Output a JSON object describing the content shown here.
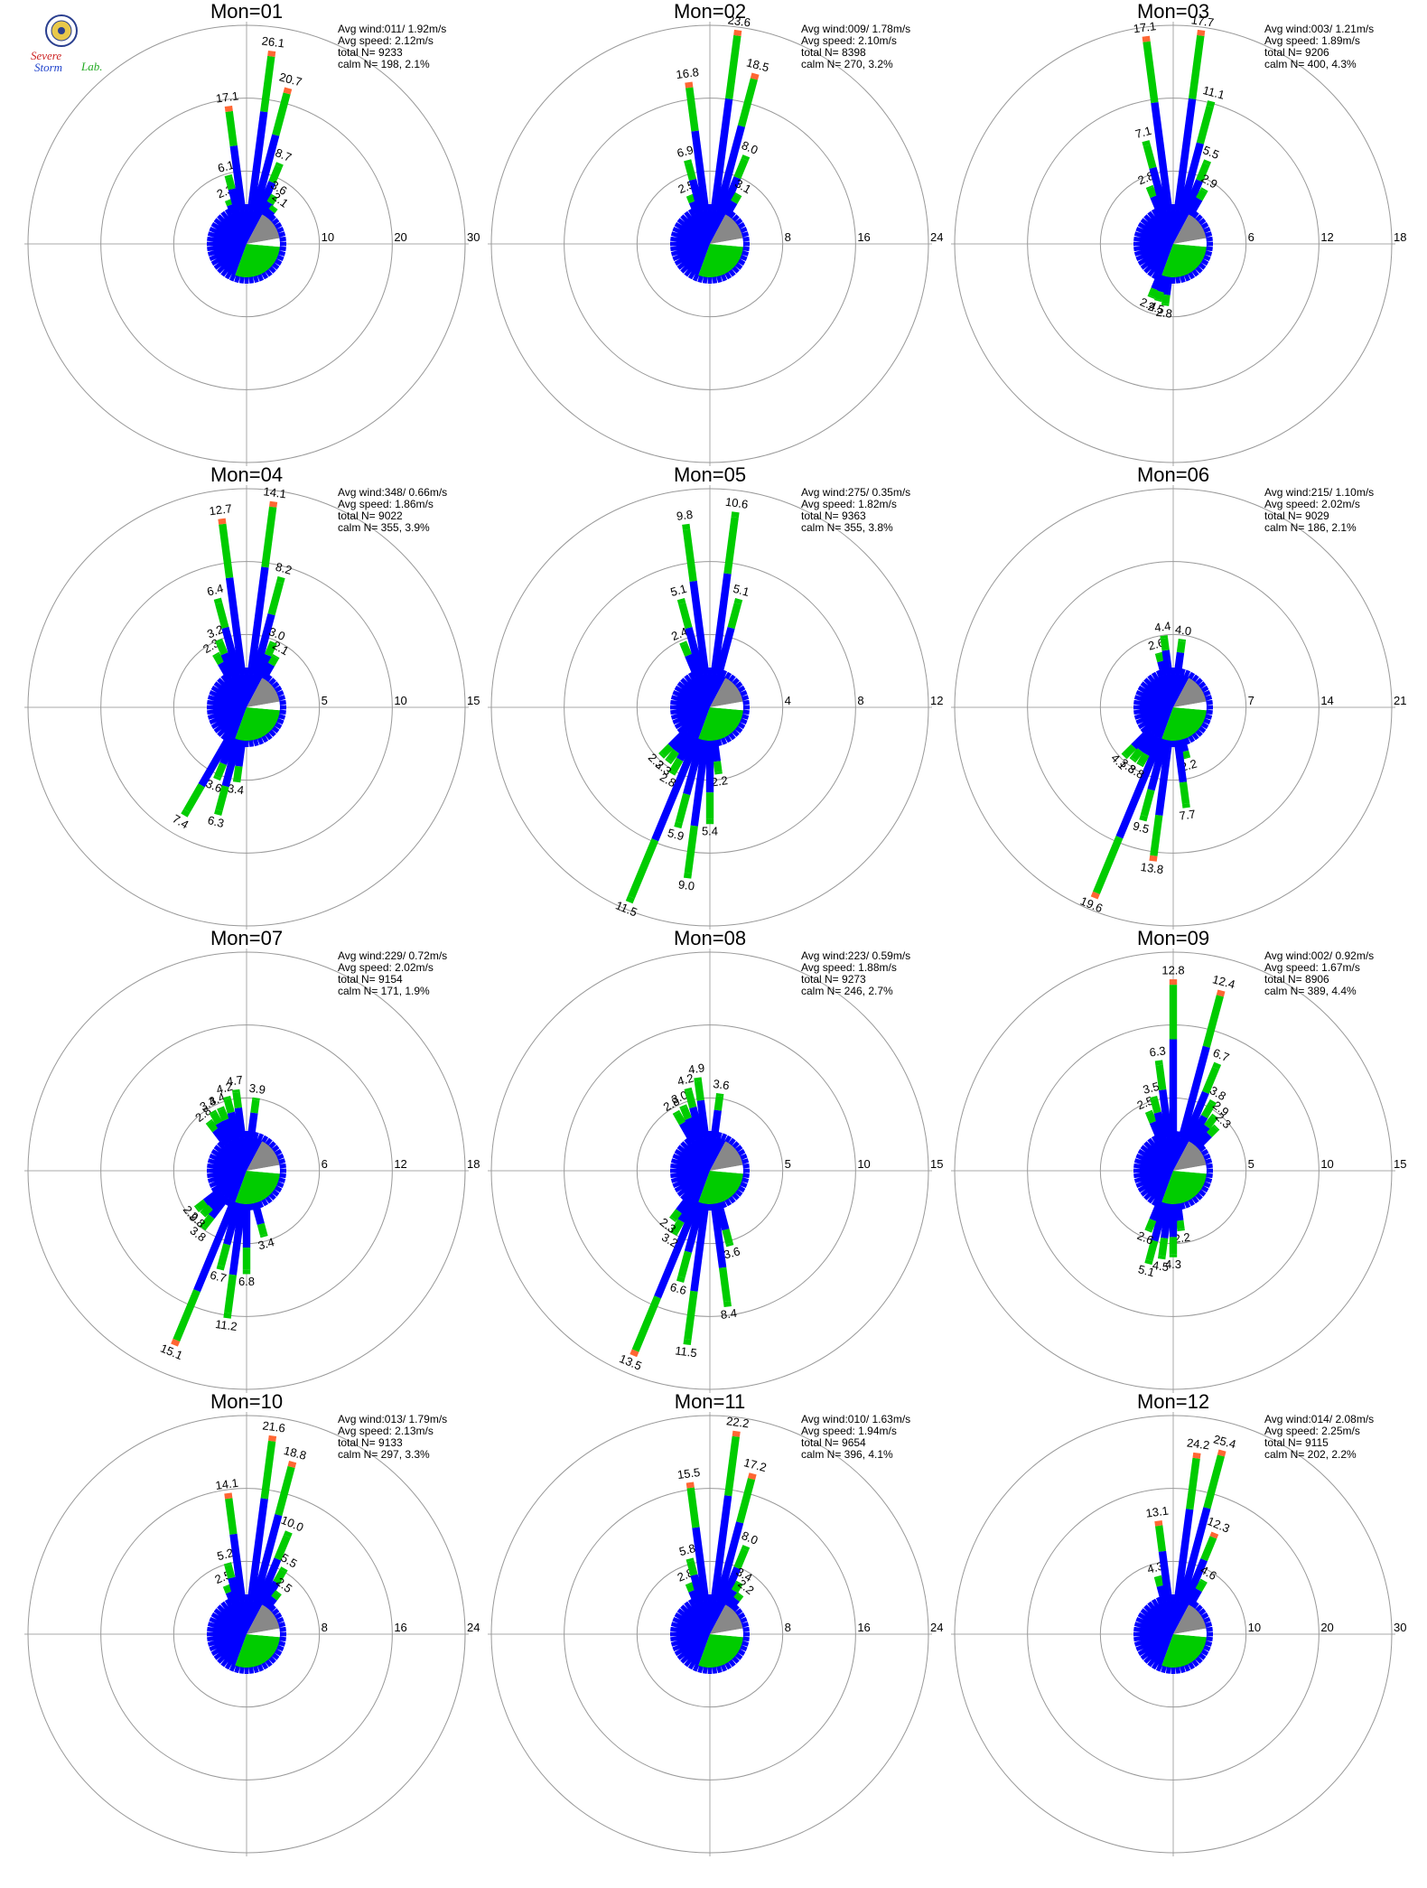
{
  "logo": {
    "line1": "Severe",
    "line2": "Storm",
    "line3": "Lab."
  },
  "colors": {
    "inner": "#0000ff",
    "mid": "#00cc00",
    "outer": "#ff6633",
    "pie_low": "#0000ff",
    "pie_mid": "#00cc00",
    "pie_gray": "#888888",
    "pie_white": "#ffffff",
    "ring": "#999999",
    "axis": "#aaaaaa"
  },
  "chart_data": [
    {
      "type": "rose",
      "title": "Mon=01",
      "avg_wind": "Avg wind:011/ 1.92m/s",
      "avg_speed": "Avg speed: 2.12m/s",
      "total_n": "total N=      9233",
      "calm_n": "calm N=    198,   2.1%",
      "ring_labels": [
        "10",
        "20",
        "30"
      ],
      "rmax": 30,
      "bars": [
        {
          "dir": 337.5,
          "value": 2.3
        },
        {
          "dir": 345,
          "value": 6.1
        },
        {
          "dir": 352.5,
          "value": 17.1
        },
        {
          "dir": 7.5,
          "value": 26.1
        },
        {
          "dir": 15,
          "value": 20.7
        },
        {
          "dir": 22.5,
          "value": 8.7
        },
        {
          "dir": 30,
          "value": 3.6
        },
        {
          "dir": 37.5,
          "value": 2.1
        }
      ]
    },
    {
      "type": "rose",
      "title": "Mon=02",
      "avg_wind": "Avg wind:009/ 1.78m/s",
      "avg_speed": "Avg speed: 2.10m/s",
      "total_n": "total N=      8398",
      "calm_n": "calm N=    270,   3.2%",
      "ring_labels": [
        "8",
        "16",
        "24"
      ],
      "rmax": 24,
      "bars": [
        {
          "dir": 337.5,
          "value": 2.5
        },
        {
          "dir": 345,
          "value": 6.9
        },
        {
          "dir": 352.5,
          "value": 16.8
        },
        {
          "dir": 7.5,
          "value": 23.6
        },
        {
          "dir": 15,
          "value": 18.5
        },
        {
          "dir": 22.5,
          "value": 8.0
        },
        {
          "dir": 30,
          "value": 3.1
        }
      ]
    },
    {
      "type": "rose",
      "title": "Mon=03",
      "avg_wind": "Avg wind:003/ 1.21m/s",
      "avg_speed": "Avg speed: 1.89m/s",
      "total_n": "total N=      9206",
      "calm_n": "calm N=    400,   4.3%",
      "ring_labels": [
        "6",
        "12",
        "18"
      ],
      "rmax": 18,
      "bars": [
        {
          "dir": 337.5,
          "value": 2.8
        },
        {
          "dir": 345,
          "value": 7.1
        },
        {
          "dir": 352.5,
          "value": 17.1
        },
        {
          "dir": 7.5,
          "value": 17.7
        },
        {
          "dir": 15,
          "value": 11.1
        },
        {
          "dir": 22.5,
          "value": 5.5
        },
        {
          "dir": 30,
          "value": 2.9
        },
        {
          "dir": 187.5,
          "value": 2.8
        },
        {
          "dir": 195,
          "value": 2.5
        },
        {
          "dir": 202.5,
          "value": 2.4
        }
      ]
    },
    {
      "type": "rose",
      "title": "Mon=04",
      "avg_wind": "Avg wind:348/ 0.66m/s",
      "avg_speed": "Avg speed: 1.86m/s",
      "total_n": "total N=      9022",
      "calm_n": "calm N=    355,   3.9%",
      "ring_labels": [
        "5",
        "10",
        "15"
      ],
      "rmax": 15,
      "bars": [
        {
          "dir": 330,
          "value": 2.3
        },
        {
          "dir": 337.5,
          "value": 3.2
        },
        {
          "dir": 345,
          "value": 6.4
        },
        {
          "dir": 352.5,
          "value": 12.7
        },
        {
          "dir": 7.5,
          "value": 14.1
        },
        {
          "dir": 15,
          "value": 8.2
        },
        {
          "dir": 22.5,
          "value": 3.0
        },
        {
          "dir": 30,
          "value": 2.1
        },
        {
          "dir": 187.5,
          "value": 3.4
        },
        {
          "dir": 195,
          "value": 6.3
        },
        {
          "dir": 202.5,
          "value": 3.6
        },
        {
          "dir": 210,
          "value": 7.4
        }
      ]
    },
    {
      "type": "rose",
      "title": "Mon=05",
      "avg_wind": "Avg wind:275/ 0.35m/s",
      "avg_speed": "Avg speed: 1.82m/s",
      "total_n": "total N=      9363",
      "calm_n": "calm N=    355,   3.8%",
      "ring_labels": [
        "4",
        "8",
        "12"
      ],
      "rmax": 12,
      "bars": [
        {
          "dir": 337.5,
          "value": 2.4
        },
        {
          "dir": 345,
          "value": 5.1
        },
        {
          "dir": 352.5,
          "value": 9.8
        },
        {
          "dir": 7.5,
          "value": 10.6
        },
        {
          "dir": 15,
          "value": 5.1
        },
        {
          "dir": 172.5,
          "value": 2.2
        },
        {
          "dir": 180,
          "value": 5.4
        },
        {
          "dir": 187.5,
          "value": 9.0
        },
        {
          "dir": 195,
          "value": 5.9
        },
        {
          "dir": 202.5,
          "value": 11.5
        },
        {
          "dir": 210,
          "value": 2.8
        },
        {
          "dir": 217.5,
          "value": 2.3
        },
        {
          "dir": 225,
          "value": 2.3
        }
      ]
    },
    {
      "type": "rose",
      "title": "Mon=06",
      "avg_wind": "Avg wind:215/ 1.10m/s",
      "avg_speed": "Avg speed: 2.02m/s",
      "total_n": "total N=      9029",
      "calm_n": "calm N=    186,   2.1%",
      "ring_labels": [
        "7",
        "14",
        "21"
      ],
      "rmax": 21,
      "bars": [
        {
          "dir": 345,
          "value": 2.6
        },
        {
          "dir": 352.5,
          "value": 4.4
        },
        {
          "dir": 7.5,
          "value": 4.0
        },
        {
          "dir": 165,
          "value": 2.2
        },
        {
          "dir": 172.5,
          "value": 7.7
        },
        {
          "dir": 187.5,
          "value": 13.8
        },
        {
          "dir": 195,
          "value": 9.5
        },
        {
          "dir": 202.5,
          "value": 19.6
        },
        {
          "dir": 210,
          "value": 3.8
        },
        {
          "dir": 217.5,
          "value": 3.8
        },
        {
          "dir": 225,
          "value": 4.1
        }
      ]
    },
    {
      "type": "rose",
      "title": "Mon=07",
      "avg_wind": "Avg wind:229/ 0.72m/s",
      "avg_speed": "Avg speed: 2.02m/s",
      "total_n": "total N=      9154",
      "calm_n": "calm N=    171,   1.9%",
      "ring_labels": [
        "6",
        "12",
        "18"
      ],
      "rmax": 18,
      "bars": [
        {
          "dir": 322.5,
          "value": 2.8
        },
        {
          "dir": 330,
          "value": 3.4
        },
        {
          "dir": 337.5,
          "value": 3.4
        },
        {
          "dir": 345,
          "value": 4.2
        },
        {
          "dir": 352.5,
          "value": 4.7
        },
        {
          "dir": 7.5,
          "value": 3.9
        },
        {
          "dir": 165,
          "value": 3.4
        },
        {
          "dir": 180,
          "value": 6.8
        },
        {
          "dir": 187.5,
          "value": 11.2
        },
        {
          "dir": 195,
          "value": 6.7
        },
        {
          "dir": 202.5,
          "value": 15.1
        },
        {
          "dir": 217.5,
          "value": 3.8
        },
        {
          "dir": 225,
          "value": 2.8
        },
        {
          "dir": 232.5,
          "value": 2.9
        }
      ]
    },
    {
      "type": "rose",
      "title": "Mon=08",
      "avg_wind": "Avg wind:223/ 0.59m/s",
      "avg_speed": "Avg speed: 1.88m/s",
      "total_n": "total N=      9273",
      "calm_n": "calm N=    246,   2.7%",
      "ring_labels": [
        "5",
        "10",
        "15"
      ],
      "rmax": 15,
      "bars": [
        {
          "dir": 330,
          "value": 2.8
        },
        {
          "dir": 337.5,
          "value": 3.0
        },
        {
          "dir": 345,
          "value": 4.2
        },
        {
          "dir": 352.5,
          "value": 4.9
        },
        {
          "dir": 7.5,
          "value": 3.6
        },
        {
          "dir": 165,
          "value": 3.6
        },
        {
          "dir": 172.5,
          "value": 8.4
        },
        {
          "dir": 187.5,
          "value": 11.5
        },
        {
          "dir": 195,
          "value": 6.6
        },
        {
          "dir": 202.5,
          "value": 13.5
        },
        {
          "dir": 210,
          "value": 3.2
        },
        {
          "dir": 217.5,
          "value": 2.3
        }
      ]
    },
    {
      "type": "rose",
      "title": "Mon=09",
      "avg_wind": "Avg wind:002/ 0.92m/s",
      "avg_speed": "Avg speed: 1.67m/s",
      "total_n": "total N=      8906",
      "calm_n": "calm N=    389,   4.4%",
      "ring_labels": [
        "5",
        "10",
        "15"
      ],
      "rmax": 15,
      "bars": [
        {
          "dir": 337.5,
          "value": 2.5
        },
        {
          "dir": 345,
          "value": 3.5
        },
        {
          "dir": 352.5,
          "value": 6.3
        },
        {
          "dir": 0,
          "value": 12.8
        },
        {
          "dir": 15,
          "value": 12.4
        },
        {
          "dir": 22.5,
          "value": 6.7
        },
        {
          "dir": 30,
          "value": 3.8
        },
        {
          "dir": 37.5,
          "value": 2.9
        },
        {
          "dir": 45,
          "value": 2.3
        },
        {
          "dir": 172.5,
          "value": 2.2
        },
        {
          "dir": 180,
          "value": 4.3
        },
        {
          "dir": 187.5,
          "value": 4.5
        },
        {
          "dir": 195,
          "value": 5.1
        },
        {
          "dir": 202.5,
          "value": 2.6
        }
      ]
    },
    {
      "type": "rose",
      "title": "Mon=10",
      "avg_wind": "Avg wind:013/ 1.79m/s",
      "avg_speed": "Avg speed: 2.13m/s",
      "total_n": "total N=      9133",
      "calm_n": "calm N=    297,   3.3%",
      "ring_labels": [
        "8",
        "16",
        "24"
      ],
      "rmax": 24,
      "bars": [
        {
          "dir": 337.5,
          "value": 2.5
        },
        {
          "dir": 345,
          "value": 5.2
        },
        {
          "dir": 352.5,
          "value": 14.1
        },
        {
          "dir": 7.5,
          "value": 21.6
        },
        {
          "dir": 15,
          "value": 18.8
        },
        {
          "dir": 22.5,
          "value": 10.0
        },
        {
          "dir": 30,
          "value": 5.5
        },
        {
          "dir": 37.5,
          "value": 2.5
        }
      ]
    },
    {
      "type": "rose",
      "title": "Mon=11",
      "avg_wind": "Avg wind:010/ 1.63m/s",
      "avg_speed": "Avg speed: 1.94m/s",
      "total_n": "total N=      9654",
      "calm_n": "calm N=    396,   4.1%",
      "ring_labels": [
        "8",
        "16",
        "24"
      ],
      "rmax": 24,
      "bars": [
        {
          "dir": 337.5,
          "value": 2.8
        },
        {
          "dir": 345,
          "value": 5.8
        },
        {
          "dir": 352.5,
          "value": 15.5
        },
        {
          "dir": 7.5,
          "value": 22.2
        },
        {
          "dir": 15,
          "value": 17.2
        },
        {
          "dir": 22.5,
          "value": 8.0
        },
        {
          "dir": 30,
          "value": 3.4
        },
        {
          "dir": 37.5,
          "value": 2.2
        }
      ]
    },
    {
      "type": "rose",
      "title": "Mon=12",
      "avg_wind": "Avg wind:014/ 2.08m/s",
      "avg_speed": "Avg speed: 2.25m/s",
      "total_n": "total N=      9115",
      "calm_n": "calm N=    202,   2.2%",
      "ring_labels": [
        "10",
        "20",
        "30"
      ],
      "rmax": 30,
      "bars": [
        {
          "dir": 345,
          "value": 4.3
        },
        {
          "dir": 352.5,
          "value": 13.1
        },
        {
          "dir": 7.5,
          "value": 24.2
        },
        {
          "dir": 15,
          "value": 25.4
        },
        {
          "dir": 22.5,
          "value": 12.3
        },
        {
          "dir": 30,
          "value": 4.6
        }
      ]
    }
  ]
}
